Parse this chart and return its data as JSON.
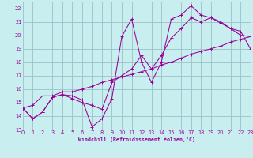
{
  "xlabel": "Windchill (Refroidissement éolien,°C)",
  "bg_color": "#c8eef0",
  "grid_color": "#a0c8cc",
  "line_color": "#990099",
  "xlim": [
    0,
    23
  ],
  "ylim": [
    13,
    22.5
  ],
  "yticks": [
    13,
    14,
    15,
    16,
    17,
    18,
    19,
    20,
    21,
    22
  ],
  "xticks": [
    0,
    1,
    2,
    3,
    4,
    5,
    6,
    7,
    8,
    9,
    10,
    11,
    12,
    13,
    14,
    15,
    16,
    17,
    18,
    19,
    20,
    21,
    22,
    23
  ],
  "line1_x": [
    0,
    1,
    2,
    3,
    4,
    5,
    6,
    7,
    8,
    9,
    10,
    11,
    12,
    13,
    14,
    15,
    16,
    17,
    18,
    19,
    20,
    21,
    22,
    23
  ],
  "line1_y": [
    14.6,
    13.8,
    14.3,
    15.4,
    15.6,
    15.5,
    15.2,
    13.2,
    13.8,
    15.3,
    19.9,
    21.2,
    18.0,
    16.5,
    18.0,
    21.2,
    21.5,
    22.2,
    21.5,
    21.3,
    20.9,
    20.5,
    20.0,
    19.9
  ],
  "line2_x": [
    0,
    1,
    2,
    3,
    4,
    5,
    6,
    7,
    8,
    9,
    10,
    11,
    12,
    13,
    14,
    15,
    16,
    17,
    18,
    19,
    20,
    21,
    22,
    23
  ],
  "line2_y": [
    14.6,
    13.8,
    14.3,
    15.4,
    15.6,
    15.3,
    15.0,
    14.8,
    14.5,
    16.5,
    17.0,
    17.5,
    18.5,
    17.5,
    18.5,
    19.8,
    20.5,
    21.3,
    21.0,
    21.3,
    21.0,
    20.5,
    20.3,
    19.0
  ],
  "line3_x": [
    0,
    1,
    2,
    3,
    4,
    5,
    6,
    7,
    8,
    9,
    10,
    11,
    12,
    13,
    14,
    15,
    16,
    17,
    18,
    19,
    20,
    21,
    22,
    23
  ],
  "line3_y": [
    14.6,
    14.8,
    15.5,
    15.5,
    15.8,
    15.8,
    16.0,
    16.2,
    16.5,
    16.7,
    16.9,
    17.1,
    17.3,
    17.5,
    17.8,
    18.0,
    18.3,
    18.6,
    18.8,
    19.0,
    19.2,
    19.5,
    19.7,
    19.9
  ]
}
